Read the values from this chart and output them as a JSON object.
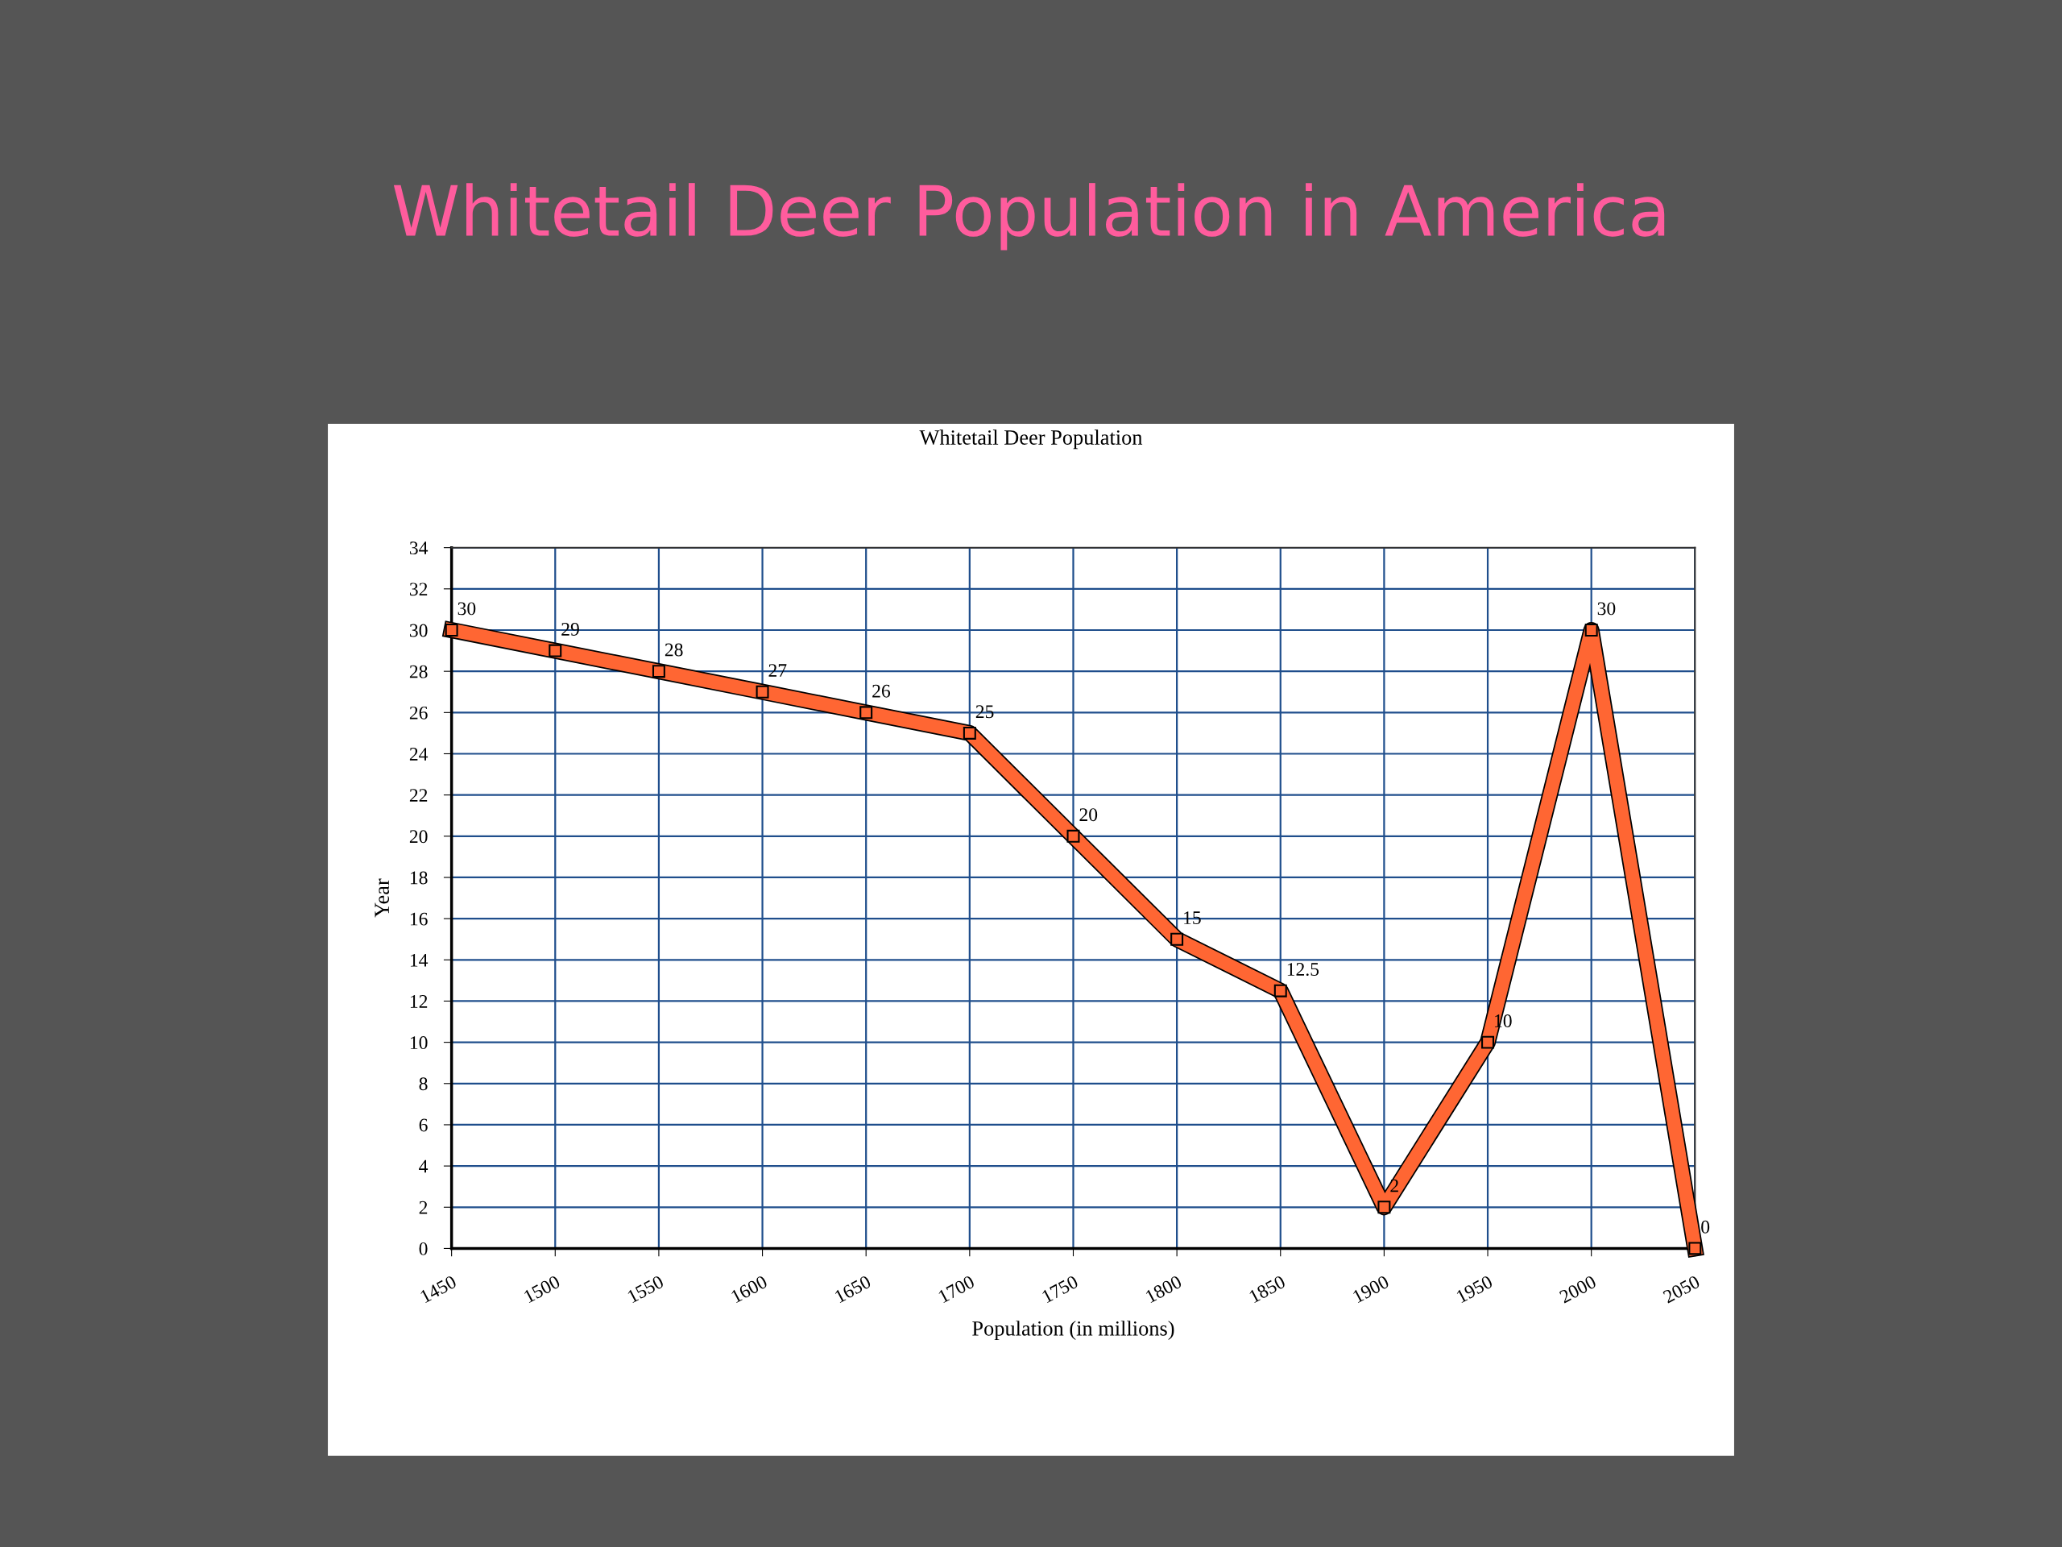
{
  "chart_data": {
    "type": "line",
    "title": "Whitetail Deer Population in America",
    "subtitle": "Whitetail Deer Population",
    "xlabel": "Population (in millions)",
    "ylabel": "Year",
    "x": [
      1450,
      1500,
      1550,
      1600,
      1650,
      1700,
      1750,
      1800,
      1850,
      1900,
      1950,
      2000,
      2050
    ],
    "series": [
      {
        "color": "#ff6633",
        "values": [
          30,
          29,
          28,
          27,
          26,
          25,
          20,
          15,
          12.5,
          2,
          10,
          30,
          0
        ]
      }
    ],
    "xlim": [
      1450,
      2050
    ],
    "xticks": [
      1450,
      1500,
      1550,
      1600,
      1650,
      1700,
      1750,
      1800,
      1850,
      1900,
      1950,
      2000,
      2050
    ],
    "ylim": [
      0,
      34
    ],
    "yticks": [
      0,
      2,
      4,
      6,
      8,
      10,
      12,
      14,
      16,
      18,
      20,
      22,
      24,
      26,
      28,
      30,
      32,
      34
    ],
    "grid": true,
    "marker": "square",
    "line_style": "solid",
    "data_labels": true
  }
}
